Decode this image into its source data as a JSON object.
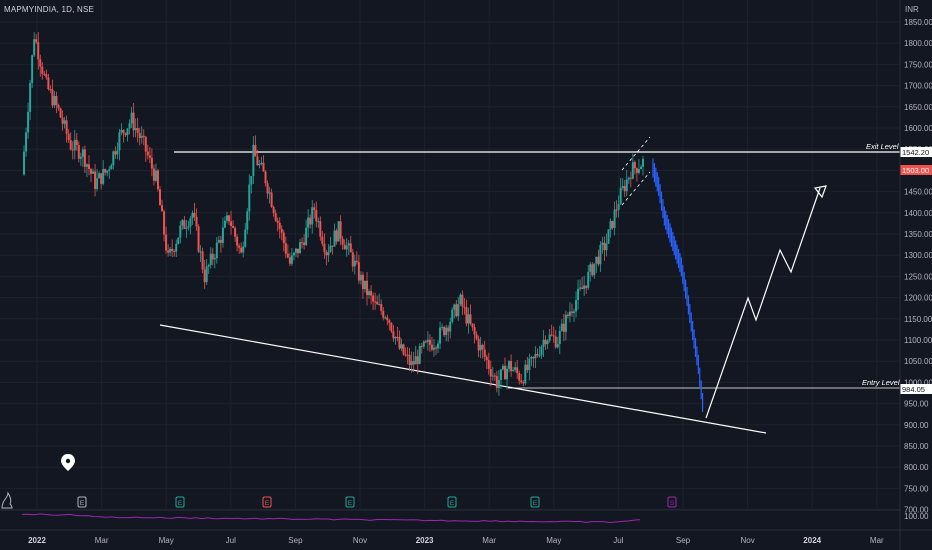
{
  "header": {
    "title": "MAPMYINDIA, 1D, NSE",
    "currency": "INR"
  },
  "colors": {
    "background": "#131722",
    "up": "#26a69a",
    "down": "#ef5350",
    "projection": "#2962ff",
    "line": "#ffffff",
    "oscillator": "#9c27b0"
  },
  "annotations": {
    "exit_label": "Exit Level",
    "entry_label": "Entry Level",
    "exit_price_tag": "1542.20",
    "entry_price_tag": "984.05",
    "last_price_tag": "1503.00"
  },
  "oscillator": {
    "label": "100.00"
  },
  "events": [
    "E",
    "E",
    "E",
    "E",
    "E",
    "E",
    "S"
  ],
  "chart_data": {
    "type": "line",
    "title": "MAPMYINDIA, 1D, NSE",
    "x_ticks": [
      "2022",
      "Mar",
      "May",
      "Jul",
      "Sep",
      "Nov",
      "2023",
      "Mar",
      "May",
      "Jul",
      "Sep",
      "Nov",
      "2024",
      "Mar"
    ],
    "y_ticks": [
      "1850.00",
      "1800.00",
      "1750.00",
      "1700.00",
      "1650.00",
      "1600.00",
      "1550.00",
      "1500.00",
      "1450.00",
      "1400.00",
      "1350.00",
      "1300.00",
      "1250.00",
      "1200.00",
      "1150.00",
      "1100.00",
      "1050.00",
      "1000.00",
      "950.00",
      "900.00",
      "850.00",
      "800.00",
      "750.00",
      "700.00"
    ],
    "ylim": [
      700,
      1870
    ],
    "series": [
      {
        "values": [
          1490,
          1820,
          1700,
          1640,
          1560,
          1540,
          1470,
          1500,
          1580,
          1620,
          1560,
          1480,
          1290,
          1360,
          1400,
          1250,
          1320,
          1390,
          1300,
          1540,
          1480,
          1380,
          1280,
          1330,
          1410,
          1310,
          1360,
          1300,
          1230,
          1180,
          1160,
          1080,
          1040,
          1080,
          1100,
          1140,
          1190,
          1120,
          1060,
          1000,
          1040,
          1010,
          1050,
          1110,
          1100,
          1170,
          1220,
          1280,
          1330,
          1430,
          1500,
          1520
        ]
      },
      {
        "values": [
          1503,
          1460,
          1390,
          1350,
          1310,
          1270,
          1200,
          1120,
          1040,
          920
        ]
      }
    ],
    "levels": [
      {
        "name": "Exit Level",
        "value": 1542.2
      },
      {
        "name": "Entry Level",
        "value": 984.05
      }
    ],
    "last_price": 1503.0
  }
}
